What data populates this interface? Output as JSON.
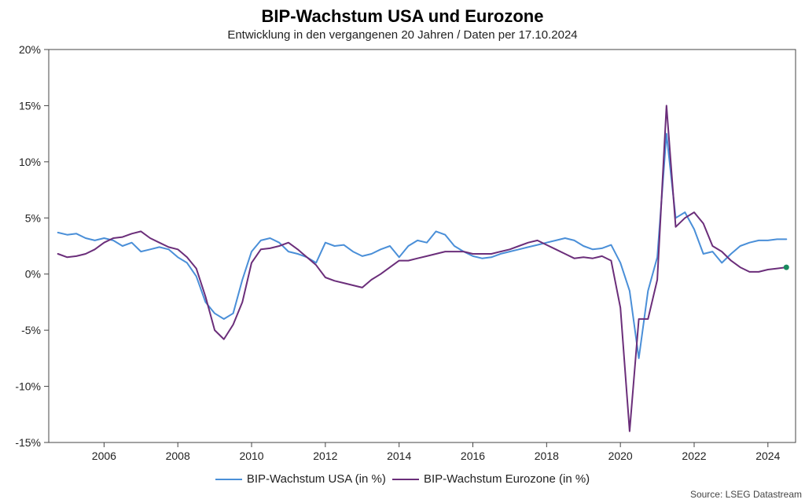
{
  "chart": {
    "type": "line",
    "title": "BIP-Wachstum USA und Eurozone",
    "subtitle": "Entwicklung in den vergangenen 20 Jahren / Daten per 17.10.2024",
    "title_fontsize": 22,
    "subtitle_fontsize": 15,
    "background_color": "#ffffff",
    "plot_border_color": "#444444",
    "grid": false,
    "x": {
      "min": 2004.5,
      "max": 2024.75,
      "tick_start": 2006,
      "tick_step": 2,
      "tick_end": 2024,
      "label_fontsize": 14
    },
    "y": {
      "min": -15,
      "max": 20,
      "tick_start": -15,
      "tick_step": 5,
      "tick_end": 20,
      "suffix": "%",
      "label_fontsize": 14
    },
    "series": [
      {
        "name": "BIP-Wachstum USA (in %)",
        "color": "#4a8fd8",
        "line_width": 2,
        "x": [
          2004.75,
          2005.0,
          2005.25,
          2005.5,
          2005.75,
          2006.0,
          2006.25,
          2006.5,
          2006.75,
          2007.0,
          2007.25,
          2007.5,
          2007.75,
          2008.0,
          2008.25,
          2008.5,
          2008.75,
          2009.0,
          2009.25,
          2009.5,
          2009.75,
          2010.0,
          2010.25,
          2010.5,
          2010.75,
          2011.0,
          2011.25,
          2011.5,
          2011.75,
          2012.0,
          2012.25,
          2012.5,
          2012.75,
          2013.0,
          2013.25,
          2013.5,
          2013.75,
          2014.0,
          2014.25,
          2014.5,
          2014.75,
          2015.0,
          2015.25,
          2015.5,
          2015.75,
          2016.0,
          2016.25,
          2016.5,
          2016.75,
          2017.0,
          2017.25,
          2017.5,
          2017.75,
          2018.0,
          2018.25,
          2018.5,
          2018.75,
          2019.0,
          2019.25,
          2019.5,
          2019.75,
          2020.0,
          2020.25,
          2020.5,
          2020.75,
          2021.0,
          2021.25,
          2021.5,
          2021.75,
          2022.0,
          2022.25,
          2022.5,
          2022.75,
          2023.0,
          2023.25,
          2023.5,
          2023.75,
          2024.0,
          2024.25,
          2024.5
        ],
        "y": [
          3.7,
          3.5,
          3.6,
          3.2,
          3.0,
          3.2,
          3.0,
          2.5,
          2.8,
          2.0,
          2.2,
          2.4,
          2.2,
          1.5,
          1.0,
          -0.2,
          -2.5,
          -3.5,
          -4.0,
          -3.5,
          -0.5,
          2.0,
          3.0,
          3.2,
          2.8,
          2.0,
          1.8,
          1.5,
          1.0,
          2.8,
          2.5,
          2.6,
          2.0,
          1.6,
          1.8,
          2.2,
          2.5,
          1.5,
          2.5,
          3.0,
          2.8,
          3.8,
          3.5,
          2.5,
          2.0,
          1.6,
          1.4,
          1.5,
          1.8,
          2.0,
          2.2,
          2.4,
          2.6,
          2.8,
          3.0,
          3.2,
          3.0,
          2.5,
          2.2,
          2.3,
          2.6,
          1.0,
          -1.5,
          -7.5,
          -1.5,
          1.5,
          12.5,
          5.0,
          5.5,
          4.0,
          1.8,
          2.0,
          1.0,
          1.8,
          2.5,
          2.8,
          3.0,
          3.0,
          3.1,
          3.1
        ]
      },
      {
        "name": "BIP-Wachstum Eurozone (in %)",
        "color": "#6b2e7a",
        "line_width": 2,
        "x": [
          2004.75,
          2005.0,
          2005.25,
          2005.5,
          2005.75,
          2006.0,
          2006.25,
          2006.5,
          2006.75,
          2007.0,
          2007.25,
          2007.5,
          2007.75,
          2008.0,
          2008.25,
          2008.5,
          2008.75,
          2009.0,
          2009.25,
          2009.5,
          2009.75,
          2010.0,
          2010.25,
          2010.5,
          2010.75,
          2011.0,
          2011.25,
          2011.5,
          2011.75,
          2012.0,
          2012.25,
          2012.5,
          2012.75,
          2013.0,
          2013.25,
          2013.5,
          2013.75,
          2014.0,
          2014.25,
          2014.5,
          2014.75,
          2015.0,
          2015.25,
          2015.5,
          2015.75,
          2016.0,
          2016.25,
          2016.5,
          2016.75,
          2017.0,
          2017.25,
          2017.5,
          2017.75,
          2018.0,
          2018.25,
          2018.5,
          2018.75,
          2019.0,
          2019.25,
          2019.5,
          2019.75,
          2020.0,
          2020.25,
          2020.5,
          2020.75,
          2021.0,
          2021.25,
          2021.5,
          2021.75,
          2022.0,
          2022.25,
          2022.5,
          2022.75,
          2023.0,
          2023.25,
          2023.5,
          2023.75,
          2024.0,
          2024.25,
          2024.5
        ],
        "y": [
          1.8,
          1.5,
          1.6,
          1.8,
          2.2,
          2.8,
          3.2,
          3.3,
          3.6,
          3.8,
          3.2,
          2.8,
          2.4,
          2.2,
          1.5,
          0.5,
          -2.0,
          -5.0,
          -5.8,
          -4.5,
          -2.5,
          1.0,
          2.2,
          2.3,
          2.5,
          2.8,
          2.2,
          1.5,
          0.8,
          -0.3,
          -0.6,
          -0.8,
          -1.0,
          -1.2,
          -0.5,
          0.0,
          0.6,
          1.2,
          1.2,
          1.4,
          1.6,
          1.8,
          2.0,
          2.0,
          2.0,
          1.8,
          1.8,
          1.8,
          2.0,
          2.2,
          2.5,
          2.8,
          3.0,
          2.6,
          2.2,
          1.8,
          1.4,
          1.5,
          1.4,
          1.6,
          1.2,
          -3.0,
          -14.0,
          -4.0,
          -4.0,
          -0.5,
          15.0,
          4.2,
          5.0,
          5.5,
          4.5,
          2.5,
          2.0,
          1.2,
          0.6,
          0.2,
          0.2,
          0.4,
          0.5,
          0.6
        ],
        "end_marker_color": "#1a8a5e"
      }
    ],
    "legend_position": "bottom-center",
    "source_label": "Source: LSEG Datastream"
  }
}
